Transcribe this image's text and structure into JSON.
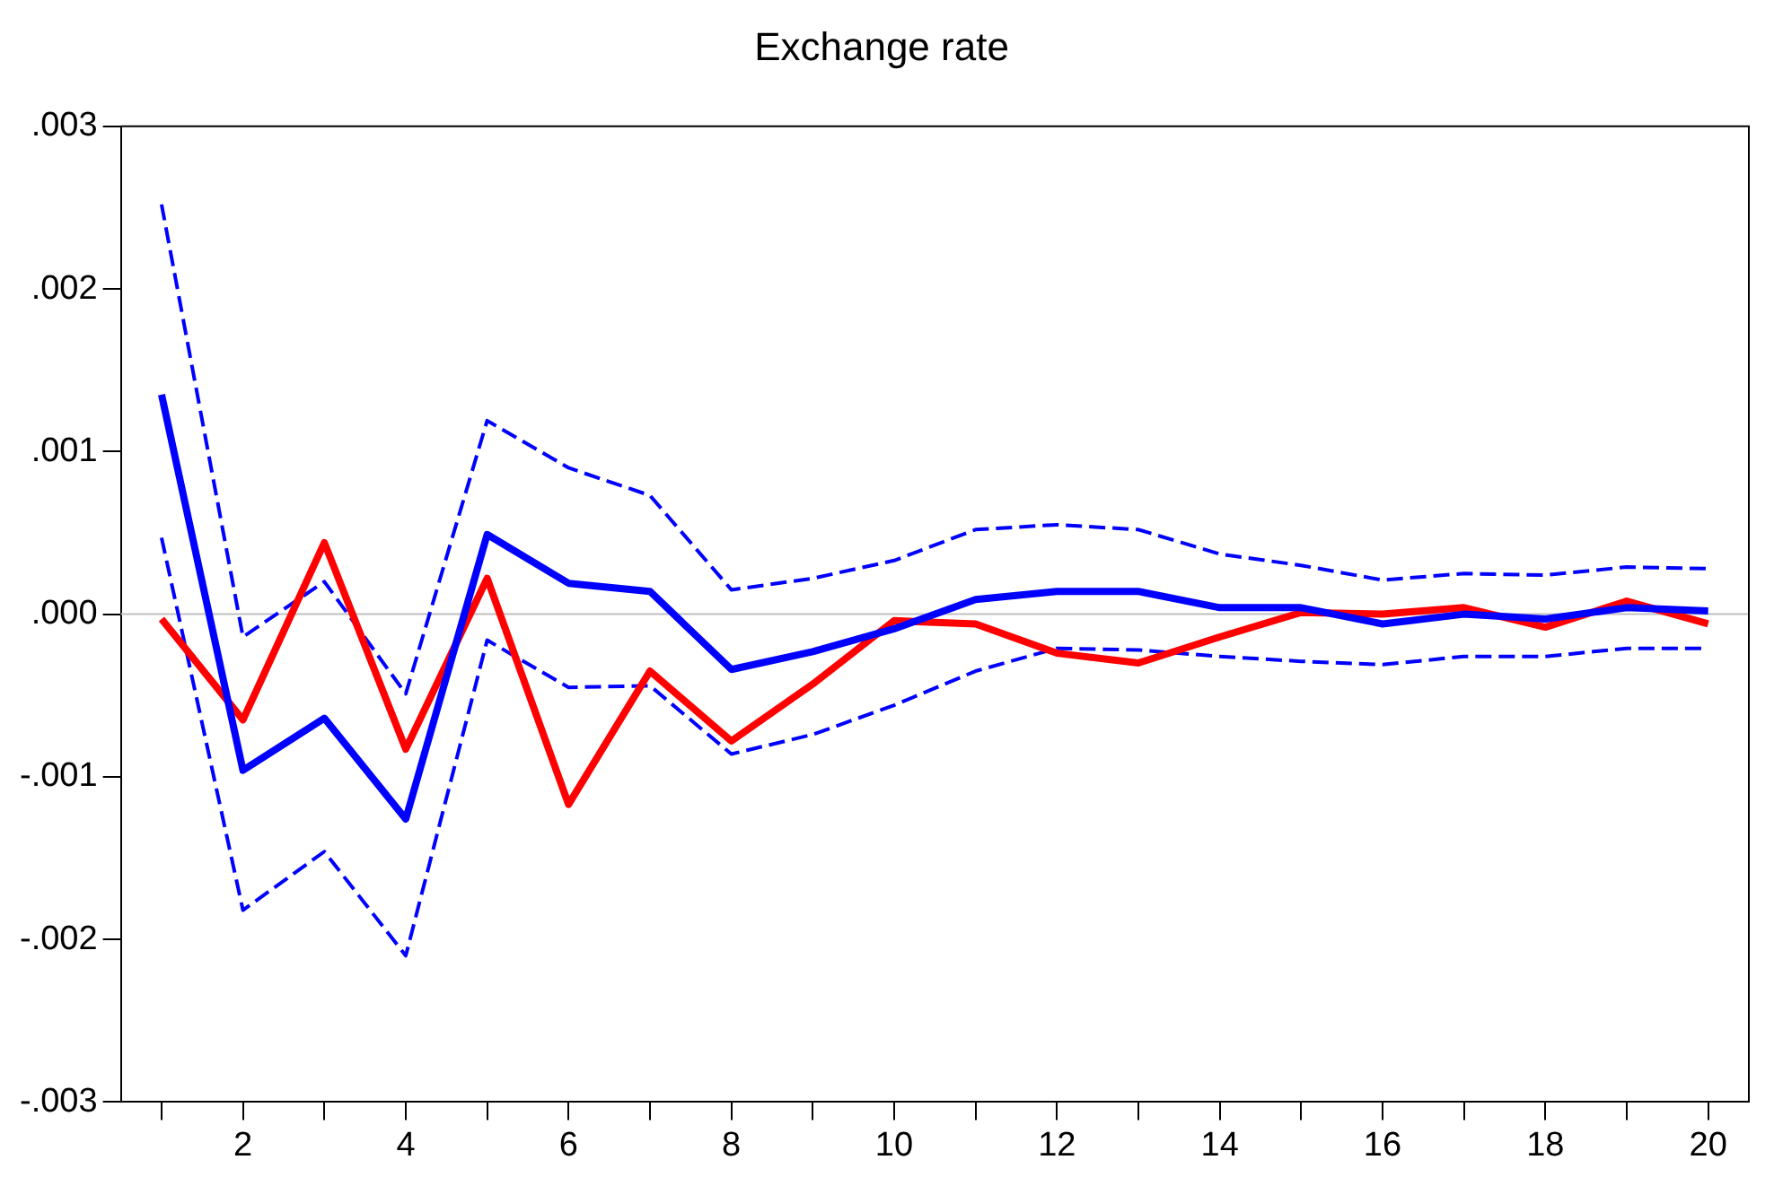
{
  "chart_data": {
    "type": "line",
    "title": "Exchange rate",
    "categories": [
      null,
      "2",
      null,
      "4",
      null,
      "6",
      null,
      "8",
      null,
      "10",
      null,
      "12",
      null,
      "14",
      null,
      "16",
      null,
      "18",
      null,
      "20"
    ],
    "series": [
      {
        "color": "#0000ff",
        "line_style": "solid",
        "values": [
          0.00135,
          -0.00096,
          -0.00064,
          -0.00126,
          0.00049,
          0.00019,
          0.00014,
          -0.00034,
          -0.00023,
          -9e-05,
          9e-05,
          0.00014,
          0.00014,
          4e-05,
          4e-05,
          -6e-05,
          0.0,
          -3e-05,
          4e-05,
          2e-05
        ]
      },
      {
        "color": "#ff0000",
        "line_style": "solid",
        "values": [
          -3e-05,
          -0.00065,
          0.00044,
          -0.00083,
          0.00022,
          -0.00117,
          -0.00035,
          -0.00078,
          -0.00043,
          -4e-05,
          -6e-05,
          -0.00024,
          -0.0003,
          -0.00014,
          1e-05,
          0.0,
          4e-05,
          -8e-05,
          8e-05,
          -6e-05
        ]
      },
      {
        "color": "#0000ff",
        "line_style": "dashed",
        "values": [
          0.00252,
          -0.00014,
          0.0002,
          -0.00049,
          0.00119,
          0.0009,
          0.00073,
          0.00015,
          0.00022,
          0.00033,
          0.00052,
          0.00055,
          0.00052,
          0.00037,
          0.0003,
          0.00021,
          0.00025,
          0.00024,
          0.00029,
          0.00028
        ]
      },
      {
        "color": "#0000ff",
        "line_style": "dashed",
        "values": [
          0.00047,
          -0.00182,
          -0.00146,
          -0.0021,
          -0.00016,
          -0.00045,
          -0.00044,
          -0.00086,
          -0.00074,
          -0.00056,
          -0.00035,
          -0.00021,
          -0.00022,
          -0.00026,
          -0.00029,
          -0.00031,
          -0.00026,
          -0.00026,
          -0.00021,
          -0.00021
        ]
      }
    ],
    "ylim": [
      -0.003,
      0.003
    ],
    "yticks": [
      {
        "value": -0.003,
        "label": "-.003"
      },
      {
        "value": -0.002,
        "label": "-.002"
      },
      {
        "value": -0.001,
        "label": "-.001"
      },
      {
        "value": 0,
        "label": ".000"
      },
      {
        "value": 0.001,
        "label": ".001"
      },
      {
        "value": 0.002,
        "label": ".002"
      },
      {
        "value": 0.003,
        "label": ".003"
      }
    ],
    "ref_lines": [
      {
        "axis": "y",
        "value": 0,
        "color": "#c0c0c0"
      }
    ],
    "grid": false,
    "legend": false,
    "marker": "none"
  }
}
